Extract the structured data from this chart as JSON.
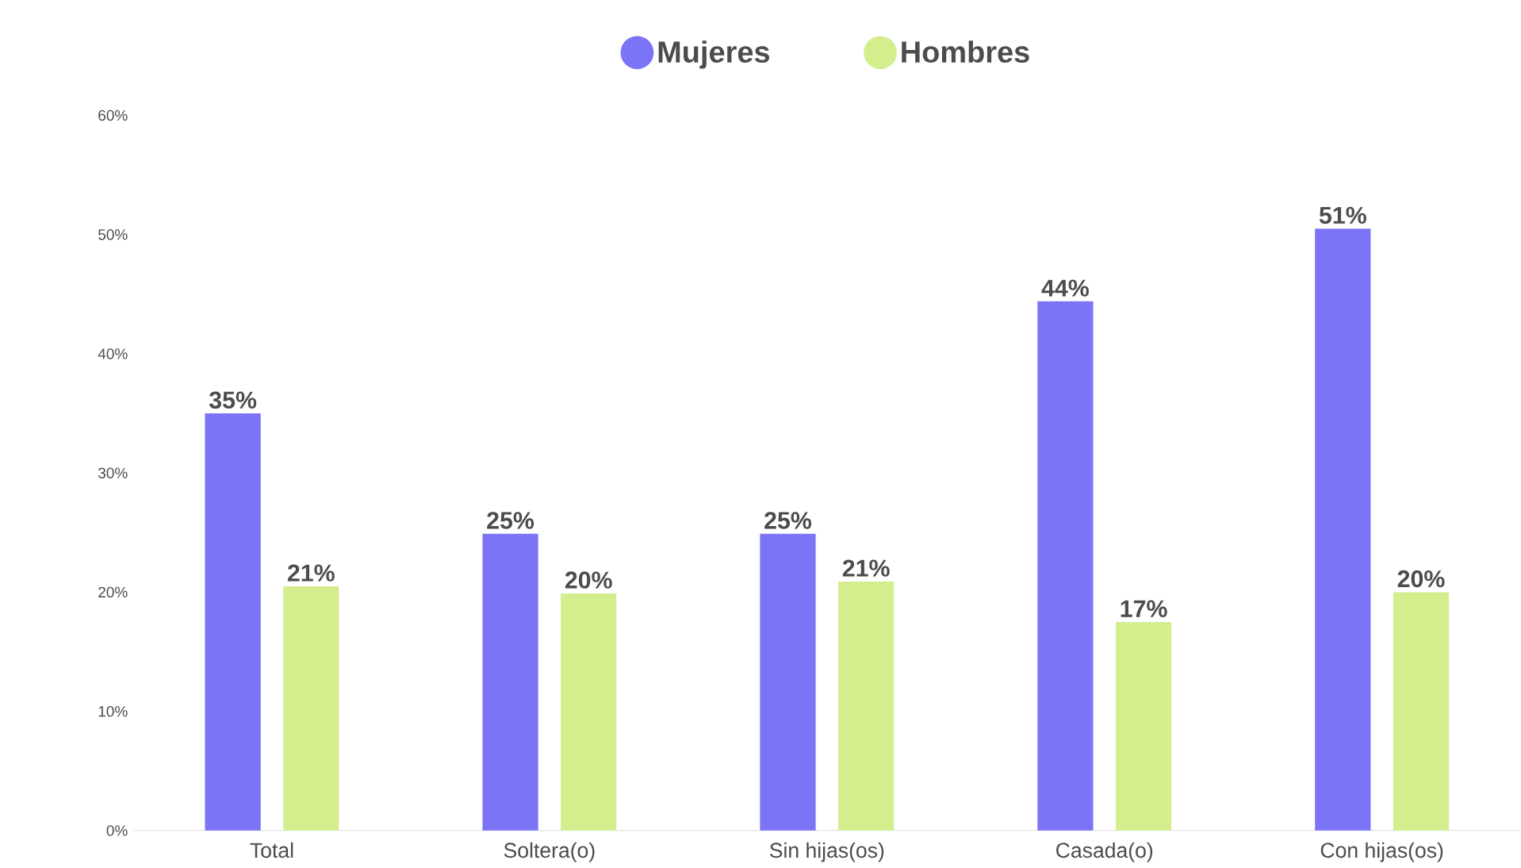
{
  "chart_data": {
    "type": "bar",
    "categories": [
      "Total",
      "Soltera(o)",
      "Sin hijas(os)",
      "Casada(o)",
      "Con hijas(os)"
    ],
    "series": [
      {
        "name": "Mujeres",
        "color": "#7b74f7",
        "values": [
          35,
          24.9,
          24.9,
          44.4,
          50.5
        ],
        "value_labels": [
          "35%",
          "25%",
          "25%",
          "44%",
          "51%"
        ]
      },
      {
        "name": "Hombres",
        "color": "#d4ee8e",
        "values": [
          20.5,
          19.9,
          20.9,
          17.5,
          20
        ],
        "value_labels": [
          "21%",
          "20%",
          "21%",
          "17%",
          "20%"
        ]
      }
    ],
    "ylim": [
      0,
      60
    ],
    "yticks": [
      {
        "value": 0,
        "label": "0%"
      },
      {
        "value": 10,
        "label": "10%"
      },
      {
        "value": 20,
        "label": "20%"
      },
      {
        "value": 30,
        "label": "30%"
      },
      {
        "value": 40,
        "label": "40%"
      },
      {
        "value": 50,
        "label": "50%"
      },
      {
        "value": 60,
        "label": "60%"
      }
    ],
    "legend": "top"
  }
}
